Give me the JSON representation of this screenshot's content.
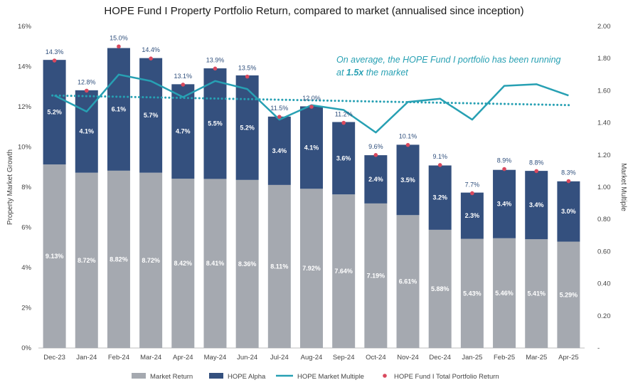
{
  "chart_data": {
    "type": "bar",
    "title": "HOPE Fund I Property Portfolio Return, compared to market (annualised since inception)",
    "ylabel": "Property Market Growth",
    "y2label": "Market Multiple",
    "ylim": [
      0,
      16
    ],
    "y2lim": [
      0,
      2.0
    ],
    "yticks": [
      "0%",
      "2%",
      "4%",
      "6%",
      "8%",
      "10%",
      "12%",
      "14%",
      "16%"
    ],
    "y2ticks": [
      "-",
      "0.20",
      "0.40",
      "0.60",
      "0.80",
      "1.00",
      "1.20",
      "1.40",
      "1.60",
      "1.80",
      "2.00"
    ],
    "categories": [
      "Dec-23",
      "Jan-24",
      "Feb-24",
      "Mar-24",
      "Apr-24",
      "May-24",
      "Jun-24",
      "Jul-24",
      "Aug-24",
      "Sep-24",
      "Oct-24",
      "Nov-24",
      "Dec-24",
      "Jan-25",
      "Feb-25",
      "Mar-25",
      "Apr-25"
    ],
    "series": [
      {
        "name": "Market Return",
        "kind": "bar-stacked",
        "color": "#a5a9b0",
        "values": [
          9.13,
          8.72,
          8.82,
          8.72,
          8.42,
          8.41,
          8.36,
          8.11,
          7.92,
          7.64,
          7.19,
          6.61,
          5.88,
          5.43,
          5.46,
          5.41,
          5.29
        ],
        "labels": [
          "9.13%",
          "8.72%",
          "8.82%",
          "8.72%",
          "8.42%",
          "8.41%",
          "8.36%",
          "8.11%",
          "7.92%",
          "7.64%",
          "7.19%",
          "6.61%",
          "5.88%",
          "5.43%",
          "5.46%",
          "5.41%",
          "5.29%"
        ]
      },
      {
        "name": "HOPE Alpha",
        "kind": "bar-stacked",
        "color": "#34507e",
        "values": [
          5.2,
          4.1,
          6.1,
          5.7,
          4.7,
          5.5,
          5.2,
          3.4,
          4.1,
          3.6,
          2.4,
          3.5,
          3.2,
          2.3,
          3.4,
          3.4,
          3.0
        ],
        "labels": [
          "5.2%",
          "4.1%",
          "6.1%",
          "5.7%",
          "4.7%",
          "5.5%",
          "5.2%",
          "3.4%",
          "4.1%",
          "3.6%",
          "2.4%",
          "3.5%",
          "3.2%",
          "2.3%",
          "3.4%",
          "3.4%",
          "3.0%"
        ]
      },
      {
        "name": "HOPE Market Multiple",
        "kind": "line-secondary",
        "color": "#27a0b3",
        "values": [
          1.57,
          1.47,
          1.7,
          1.66,
          1.56,
          1.66,
          1.61,
          1.42,
          1.51,
          1.48,
          1.34,
          1.53,
          1.55,
          1.42,
          1.63,
          1.64,
          1.57
        ]
      },
      {
        "name": "HOPE Fund I Total Portfolio Return",
        "kind": "marker",
        "color": "#d9495e",
        "values": [
          14.3,
          12.8,
          15.0,
          14.4,
          13.1,
          13.9,
          13.5,
          11.5,
          12.0,
          11.2,
          9.6,
          10.1,
          9.1,
          7.7,
          8.9,
          8.8,
          8.3
        ],
        "labels": [
          "14.3%",
          "12.8%",
          "15.0%",
          "14.4%",
          "13.1%",
          "13.9%",
          "13.5%",
          "11.5%",
          "12.0%",
          "11.2%",
          "9.6%",
          "10.1%",
          "9.1%",
          "7.7%",
          "8.9%",
          "8.8%",
          "8.3%"
        ]
      }
    ],
    "trendline": {
      "of": "HOPE Market Multiple",
      "style": "dotted",
      "color": "#27a0b3",
      "start": 1.57,
      "end": 1.51
    },
    "annotation": {
      "line1": "On average, the HOPE Fund I portfolio has been running",
      "line2_pre": "at ",
      "line2_strong": "1.5x",
      "line2_post": " the market"
    },
    "legend": [
      "Market Return",
      "HOPE Alpha",
      "HOPE Market Multiple",
      "HOPE Fund I Total Portfolio Return"
    ],
    "legend_position": "bottom",
    "grid": false
  }
}
